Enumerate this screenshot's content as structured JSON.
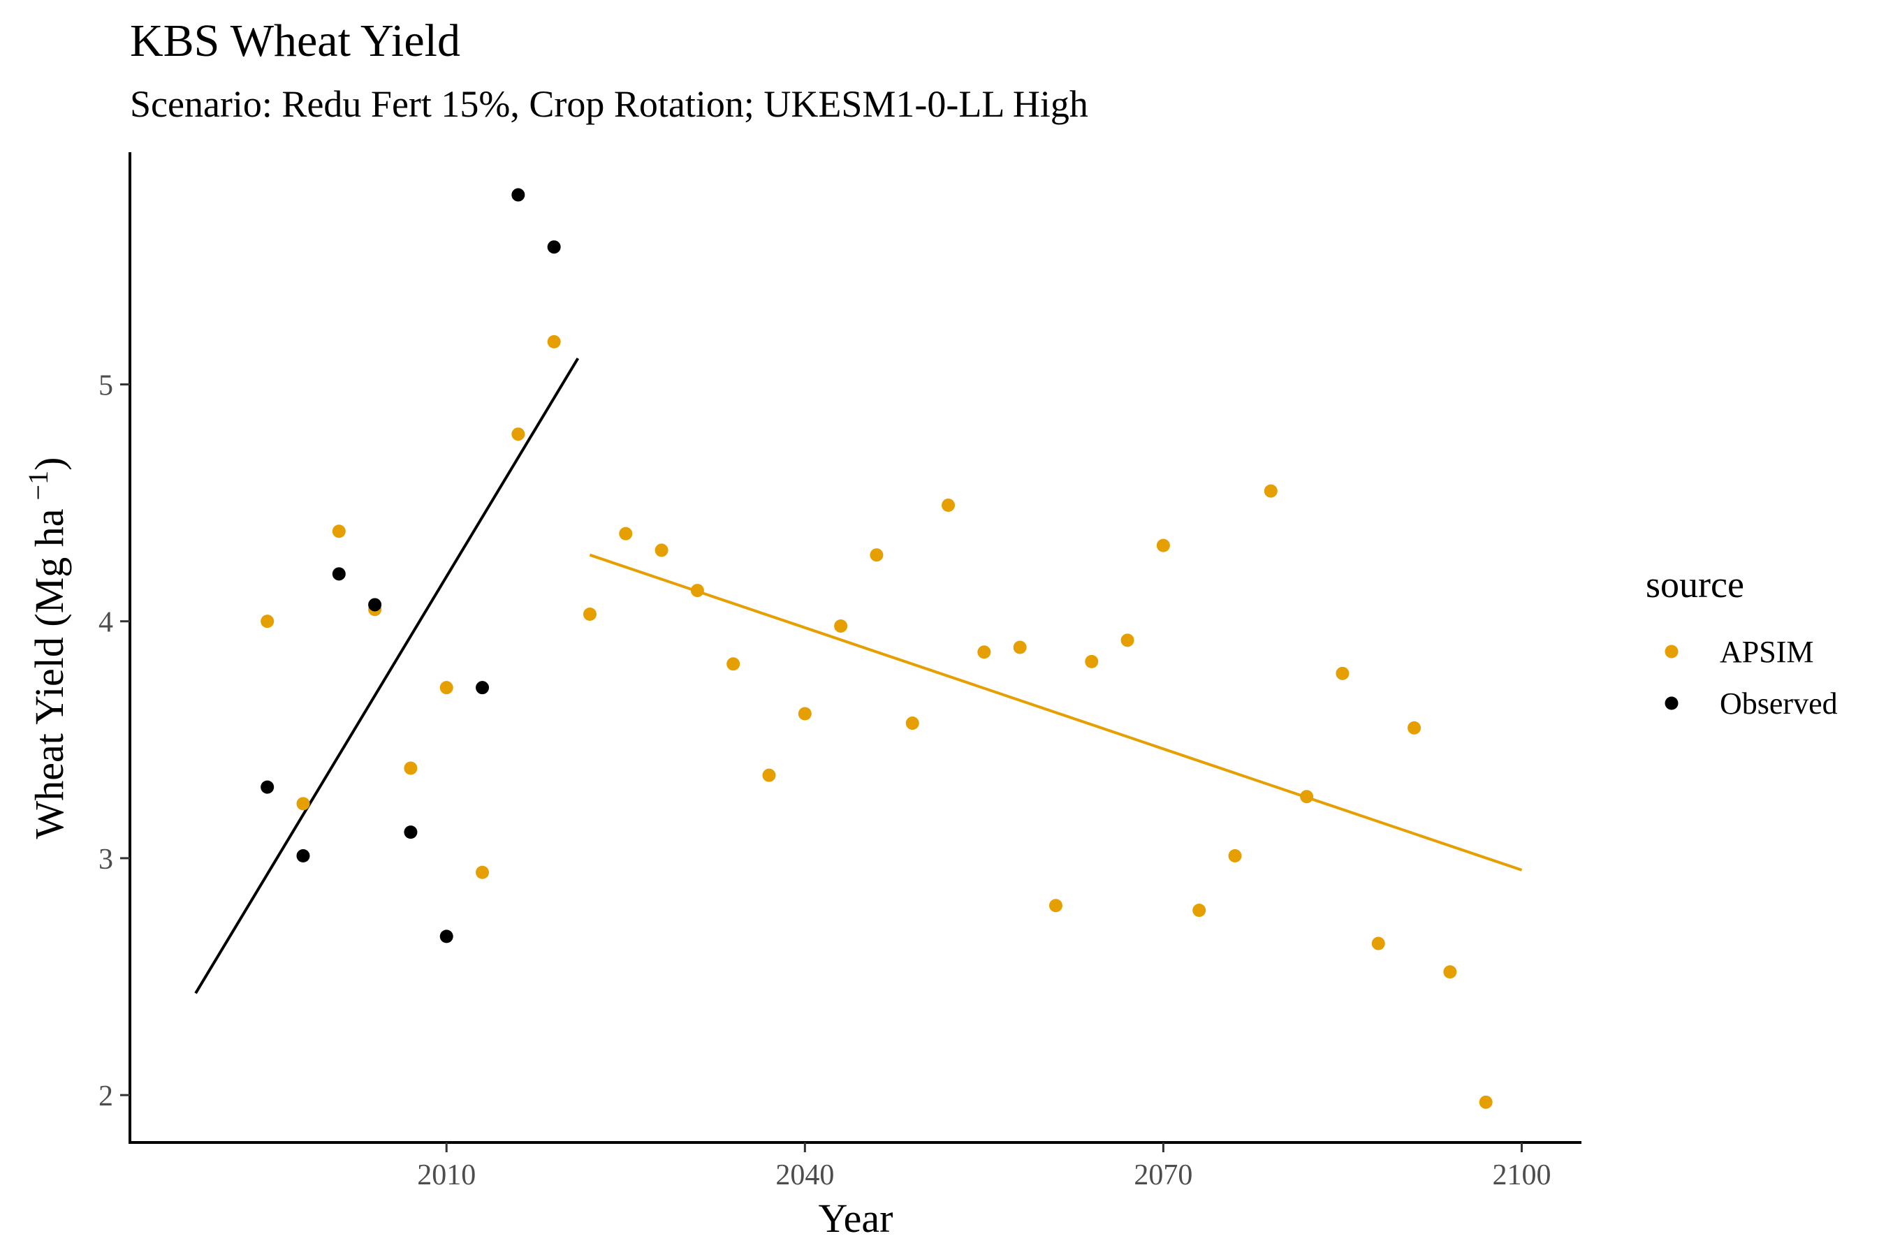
{
  "chart_data": {
    "type": "scatter",
    "title": "KBS Wheat Yield",
    "subtitle": "Scenario: Redu Fert 15%, Crop Rotation; UKESM1-0-LL High",
    "xlabel": "Year",
    "ylabel_main": "Wheat Yield (Mg ha",
    "ylabel_sup": "−1",
    "ylabel_close": ")",
    "xlim": [
      1983.5,
      2105
    ],
    "ylim": [
      1.8,
      5.98
    ],
    "x_ticks": [
      2010,
      2040,
      2070,
      2100
    ],
    "y_ticks": [
      2,
      3,
      4,
      5
    ],
    "x_tick_labels": [
      "2010",
      "2040",
      "2070",
      "2100"
    ],
    "y_tick_labels": [
      "2",
      "3",
      "4",
      "5"
    ],
    "grid": false,
    "legend": {
      "title": "source",
      "position": "right",
      "entries": [
        "APSIM",
        "Observed"
      ]
    },
    "series": [
      {
        "name": "APSIM",
        "color": "#E69F00",
        "points": [
          [
            1995,
            4.0
          ],
          [
            1998,
            3.23
          ],
          [
            2001,
            4.38
          ],
          [
            2004,
            4.05
          ],
          [
            2007,
            3.38
          ],
          [
            2010,
            3.72
          ],
          [
            2013,
            2.94
          ],
          [
            2016,
            4.79
          ],
          [
            2019,
            5.18
          ],
          [
            2022,
            4.03
          ],
          [
            2025,
            4.37
          ],
          [
            2028,
            4.3
          ],
          [
            2031,
            4.13
          ],
          [
            2034,
            3.82
          ],
          [
            2037,
            3.35
          ],
          [
            2040,
            3.61
          ],
          [
            2043,
            3.98
          ],
          [
            2046,
            4.28
          ],
          [
            2049,
            3.57
          ],
          [
            2052,
            4.49
          ],
          [
            2055,
            3.87
          ],
          [
            2058,
            3.89
          ],
          [
            2061,
            2.8
          ],
          [
            2064,
            3.83
          ],
          [
            2067,
            3.92
          ],
          [
            2070,
            4.32
          ],
          [
            2073,
            2.78
          ],
          [
            2076,
            3.01
          ],
          [
            2079,
            4.55
          ],
          [
            2082,
            3.26
          ],
          [
            2085,
            3.78
          ],
          [
            2088,
            2.64
          ],
          [
            2091,
            3.55
          ],
          [
            2094,
            2.52
          ],
          [
            2097,
            1.97
          ]
        ],
        "trend": [
          [
            2022,
            4.28
          ],
          [
            2100,
            2.95
          ]
        ]
      },
      {
        "name": "Observed",
        "color": "#000000",
        "points": [
          [
            1995,
            3.3
          ],
          [
            1998,
            3.01
          ],
          [
            2001,
            4.2
          ],
          [
            2004,
            4.07
          ],
          [
            2007,
            3.11
          ],
          [
            2010,
            2.67
          ],
          [
            2013,
            3.72
          ],
          [
            2016,
            5.8
          ],
          [
            2019,
            5.58
          ]
        ],
        "trend": [
          [
            1989,
            2.43
          ],
          [
            2021,
            5.11
          ]
        ]
      }
    ]
  }
}
